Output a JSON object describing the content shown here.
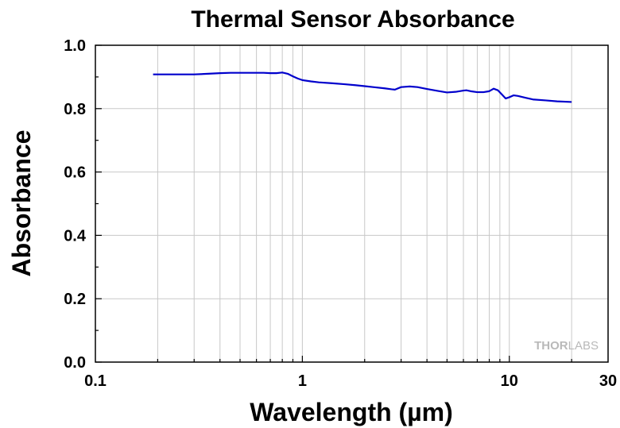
{
  "chart_data": {
    "type": "line",
    "title": "Thermal Sensor Absorbance",
    "xlabel": "Wavelength (µm)",
    "ylabel": "Absorbance",
    "xscale": "log",
    "xlim": [
      0.1,
      30
    ],
    "ylim": [
      0.0,
      1.0
    ],
    "grid": true,
    "xticks": [
      0.1,
      1,
      10,
      30
    ],
    "xtick_labels": [
      "0.1",
      "1",
      "10",
      "30"
    ],
    "yticks": [
      0.0,
      0.2,
      0.4,
      0.6,
      0.8,
      1.0
    ],
    "ytick_labels": [
      "0.0",
      "0.2",
      "0.4",
      "0.6",
      "0.8",
      "1.0"
    ],
    "series": [
      {
        "color": "#0000cc",
        "x": [
          0.19,
          0.25,
          0.3,
          0.35,
          0.4,
          0.45,
          0.5,
          0.55,
          0.6,
          0.65,
          0.7,
          0.75,
          0.8,
          0.85,
          0.9,
          0.95,
          1.0,
          1.1,
          1.2,
          1.4,
          1.6,
          1.8,
          2.0,
          2.2,
          2.5,
          2.7,
          2.8,
          3.0,
          3.3,
          3.6,
          4.0,
          4.5,
          5.0,
          5.5,
          6.0,
          6.2,
          6.5,
          7.0,
          7.5,
          8.0,
          8.4,
          8.8,
          9.2,
          9.6,
          10.0,
          10.5,
          11.0,
          12.0,
          13.0,
          15.0,
          17.0,
          20.0
        ],
        "y": [
          0.908,
          0.908,
          0.908,
          0.91,
          0.912,
          0.913,
          0.913,
          0.913,
          0.913,
          0.913,
          0.912,
          0.912,
          0.914,
          0.91,
          0.902,
          0.895,
          0.89,
          0.886,
          0.883,
          0.88,
          0.877,
          0.874,
          0.871,
          0.868,
          0.864,
          0.861,
          0.86,
          0.868,
          0.87,
          0.868,
          0.862,
          0.856,
          0.851,
          0.853,
          0.857,
          0.858,
          0.855,
          0.852,
          0.852,
          0.855,
          0.863,
          0.858,
          0.845,
          0.832,
          0.836,
          0.842,
          0.84,
          0.834,
          0.829,
          0.826,
          0.823,
          0.821
        ]
      }
    ]
  },
  "watermark": {
    "bold_part": "THOR",
    "light_part": "LABS"
  }
}
